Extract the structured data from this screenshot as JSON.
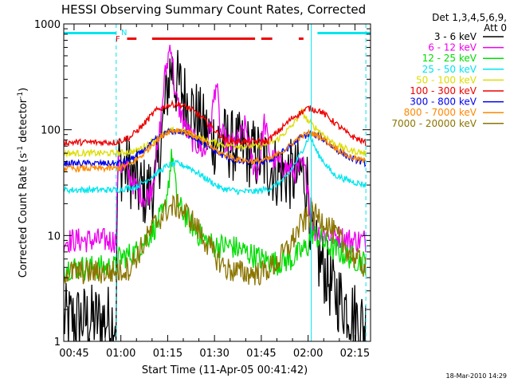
{
  "chart_data": {
    "type": "line",
    "title": "HESSI Observing Summary Count Rates, Corrected",
    "xlabel": "Start Time (11-Apr-05 00:41:42)",
    "ylabel_main": "Corrected Count Rate (s",
    "ylabel_sup1": "-1",
    "ylabel_mid": " detector",
    "ylabel_sup2": "-1",
    "ylabel_end": ")",
    "y_scale": "log",
    "ylim": [
      1,
      1000
    ],
    "xlim": [
      "00:41:42",
      "02:20:00"
    ],
    "x_ticks": [
      "00:45",
      "01:00",
      "01:15",
      "01:30",
      "01:45",
      "02:00",
      "02:15"
    ],
    "y_ticks": [
      "1",
      "10",
      "100",
      "1000"
    ],
    "legend_header": [
      "Det 1,3,4,5,6,9,",
      "Att 0"
    ],
    "legend_position": "right",
    "footer_date": "18-Mar-2010 14:29",
    "flags": {
      "night_label": "N",
      "flare_label": "F",
      "night_color": "#00e5ee",
      "flare_color": "#ee0000",
      "night_bars": [
        [
          "00:41:42",
          "00:58:30"
        ],
        [
          "02:03:00",
          "02:20:00"
        ]
      ],
      "flare_bars": [
        [
          "01:02:00",
          "01:05:00"
        ],
        [
          "01:10:00",
          "01:43:00"
        ],
        [
          "01:45:00",
          "01:48:30"
        ],
        [
          "01:57:00",
          "01:58:30"
        ]
      ],
      "vlines": [
        "00:58:30",
        "02:01:00",
        "02:18:30"
      ]
    },
    "series": [
      {
        "name": "3 - 6 keV",
        "color": "#000000",
        "pts": [
          [
            "00:41:42",
            1.6
          ],
          [
            "00:58:30",
            1.6
          ],
          [
            "00:59:00",
            48
          ],
          [
            "01:03:00",
            40
          ],
          [
            "01:05:00",
            30
          ],
          [
            "01:08:00",
            25
          ],
          [
            "01:11:00",
            30
          ],
          [
            "01:13:00",
            80
          ],
          [
            "01:14:30",
            200
          ],
          [
            "01:16:00",
            410
          ],
          [
            "01:17:30",
            280
          ],
          [
            "01:19:00",
            250
          ],
          [
            "01:21:00",
            190
          ],
          [
            "01:24:00",
            140
          ],
          [
            "01:27:00",
            95
          ],
          [
            "01:30:00",
            80
          ],
          [
            "01:33:00",
            78
          ],
          [
            "01:36:00",
            70
          ],
          [
            "01:39:00",
            65
          ],
          [
            "01:42:00",
            60
          ],
          [
            "01:44:00",
            55
          ],
          [
            "01:46:00",
            50
          ],
          [
            "01:48:00",
            45
          ],
          [
            "01:50:00",
            40
          ],
          [
            "01:53:00",
            38
          ],
          [
            "01:56:00",
            36
          ],
          [
            "01:58:00",
            40
          ],
          [
            "02:00:00",
            30
          ],
          [
            "02:01:00",
            10
          ],
          [
            "02:02:00",
            7
          ],
          [
            "02:05:00",
            5
          ],
          [
            "02:08:00",
            3
          ],
          [
            "02:12:00",
            2.2
          ],
          [
            "02:16:00",
            1.6
          ],
          [
            "02:18:30",
            1.4
          ]
        ]
      },
      {
        "name": "6 - 12 keV",
        "color": "#ee00ee",
        "pts": [
          [
            "00:41:42",
            9
          ],
          [
            "00:58:30",
            9
          ],
          [
            "00:59:00",
            50
          ],
          [
            "01:02:00",
            40
          ],
          [
            "01:05:00",
            28
          ],
          [
            "01:08:00",
            22
          ],
          [
            "01:10:00",
            30
          ],
          [
            "01:12:00",
            70
          ],
          [
            "01:14:00",
            300
          ],
          [
            "01:16:00",
            700
          ],
          [
            "01:17:30",
            200
          ],
          [
            "01:19:00",
            150
          ],
          [
            "01:21:00",
            100
          ],
          [
            "01:23:00",
            80
          ],
          [
            "01:25:00",
            70
          ],
          [
            "01:27:00",
            60
          ],
          [
            "01:29:00",
            120
          ],
          [
            "01:30:30",
            300
          ],
          [
            "01:32:00",
            90
          ],
          [
            "01:35:00",
            70
          ],
          [
            "01:38:00",
            80
          ],
          [
            "01:40:00",
            110
          ],
          [
            "01:42:00",
            50
          ],
          [
            "01:44:00",
            40
          ],
          [
            "01:46:00",
            120
          ],
          [
            "01:48:00",
            55
          ],
          [
            "01:52:00",
            45
          ],
          [
            "01:56:00",
            40
          ],
          [
            "01:58:30",
            45
          ],
          [
            "02:00:00",
            30
          ],
          [
            "02:01:00",
            12
          ],
          [
            "02:02:00",
            11
          ],
          [
            "02:08:00",
            10
          ],
          [
            "02:14:00",
            9
          ],
          [
            "02:18:30",
            9
          ]
        ]
      },
      {
        "name": "12 - 25 keV",
        "color": "#00dd00",
        "pts": [
          [
            "00:41:42",
            5
          ],
          [
            "00:58:30",
            5
          ],
          [
            "00:59:00",
            6
          ],
          [
            "01:05:00",
            7
          ],
          [
            "01:10:00",
            11
          ],
          [
            "01:14:00",
            17
          ],
          [
            "01:16:30",
            60
          ],
          [
            "01:18:00",
            20
          ],
          [
            "01:21:00",
            15
          ],
          [
            "01:24:00",
            11
          ],
          [
            "01:27:00",
            9
          ],
          [
            "01:30:00",
            8
          ],
          [
            "01:35:00",
            8
          ],
          [
            "01:40:00",
            7
          ],
          [
            "01:45:00",
            6
          ],
          [
            "01:50:00",
            5.5
          ],
          [
            "01:55:00",
            6
          ],
          [
            "02:00:00",
            8
          ],
          [
            "02:01:00",
            11
          ],
          [
            "02:06:00",
            8
          ],
          [
            "02:10:00",
            7
          ],
          [
            "02:15:00",
            6
          ],
          [
            "02:18:30",
            5.5
          ]
        ]
      },
      {
        "name": "25 - 50 keV",
        "color": "#00e5ee",
        "pts": [
          [
            "00:41:42",
            27
          ],
          [
            "00:58:30",
            27
          ],
          [
            "01:05:00",
            29
          ],
          [
            "01:10:00",
            36
          ],
          [
            "01:15:00",
            46
          ],
          [
            "01:18:00",
            48
          ],
          [
            "01:22:00",
            44
          ],
          [
            "01:27:00",
            35
          ],
          [
            "01:32:00",
            28
          ],
          [
            "01:38:00",
            26
          ],
          [
            "01:43:00",
            26
          ],
          [
            "01:48:00",
            28
          ],
          [
            "01:53:00",
            35
          ],
          [
            "01:57:00",
            55
          ],
          [
            "02:00:30",
            88
          ],
          [
            "02:03:00",
            60
          ],
          [
            "02:08:00",
            38
          ],
          [
            "02:13:00",
            33
          ],
          [
            "02:18:30",
            30
          ]
        ]
      },
      {
        "name": "50 - 100 keV",
        "color": "#dddd00",
        "pts": [
          [
            "00:41:42",
            60
          ],
          [
            "00:58:30",
            60
          ],
          [
            "01:05:00",
            63
          ],
          [
            "01:10:00",
            78
          ],
          [
            "01:15:00",
            96
          ],
          [
            "01:18:00",
            100
          ],
          [
            "01:22:00",
            92
          ],
          [
            "01:27:00",
            80
          ],
          [
            "01:33:00",
            72
          ],
          [
            "01:40:00",
            70
          ],
          [
            "01:45:00",
            70
          ],
          [
            "01:50:00",
            80
          ],
          [
            "01:55:00",
            110
          ],
          [
            "01:58:00",
            150
          ],
          [
            "02:00:00",
            120
          ],
          [
            "02:04:00",
            95
          ],
          [
            "02:08:00",
            75
          ],
          [
            "02:13:00",
            64
          ],
          [
            "02:18:30",
            60
          ]
        ]
      },
      {
        "name": "100 - 300 keV",
        "color": "#ee0000",
        "pts": [
          [
            "00:41:42",
            76
          ],
          [
            "00:58:30",
            76
          ],
          [
            "01:03:00",
            85
          ],
          [
            "01:07:00",
            110
          ],
          [
            "01:11:00",
            150
          ],
          [
            "01:15:00",
            170
          ],
          [
            "01:18:00",
            175
          ],
          [
            "01:22:00",
            160
          ],
          [
            "01:26:00",
            130
          ],
          [
            "01:30:00",
            100
          ],
          [
            "01:33:00",
            80
          ],
          [
            "01:38:00",
            77
          ],
          [
            "01:43:00",
            77
          ],
          [
            "01:47:00",
            78
          ],
          [
            "01:51:00",
            100
          ],
          [
            "01:55:00",
            130
          ],
          [
            "02:00:00",
            160
          ],
          [
            "02:04:00",
            150
          ],
          [
            "02:08:00",
            120
          ],
          [
            "02:13:00",
            90
          ],
          [
            "02:18:30",
            75
          ]
        ]
      },
      {
        "name": "300 - 800 keV",
        "color": "#0000ee",
        "pts": [
          [
            "00:41:42",
            48
          ],
          [
            "00:58:30",
            48
          ],
          [
            "01:03:00",
            52
          ],
          [
            "01:07:00",
            62
          ],
          [
            "01:11:00",
            80
          ],
          [
            "01:15:00",
            95
          ],
          [
            "01:18:00",
            97
          ],
          [
            "01:22:00",
            90
          ],
          [
            "01:27:00",
            72
          ],
          [
            "01:32:00",
            58
          ],
          [
            "01:38:00",
            50
          ],
          [
            "01:43:00",
            49
          ],
          [
            "01:48:00",
            52
          ],
          [
            "01:53:00",
            65
          ],
          [
            "01:57:00",
            82
          ],
          [
            "02:00:30",
            92
          ],
          [
            "02:04:00",
            85
          ],
          [
            "02:08:00",
            68
          ],
          [
            "02:13:00",
            55
          ],
          [
            "02:18:30",
            48
          ]
        ]
      },
      {
        "name": "800 - 7000 keV",
        "color": "#ff8800",
        "pts": [
          [
            "00:41:42",
            43
          ],
          [
            "00:58:30",
            43
          ],
          [
            "01:03:00",
            47
          ],
          [
            "01:07:00",
            58
          ],
          [
            "01:11:00",
            78
          ],
          [
            "01:15:00",
            96
          ],
          [
            "01:18:00",
            100
          ],
          [
            "01:22:00",
            93
          ],
          [
            "01:27:00",
            75
          ],
          [
            "01:32:00",
            60
          ],
          [
            "01:38:00",
            52
          ],
          [
            "01:43:00",
            50
          ],
          [
            "01:48:00",
            53
          ],
          [
            "01:53:00",
            66
          ],
          [
            "01:57:00",
            84
          ],
          [
            "02:00:30",
            94
          ],
          [
            "02:04:00",
            86
          ],
          [
            "02:08:00",
            70
          ],
          [
            "02:13:00",
            56
          ],
          [
            "02:18:30",
            50
          ]
        ]
      },
      {
        "name": "7000 - 20000 keV",
        "color": "#8b7500",
        "pts": [
          [
            "00:41:42",
            4.5
          ],
          [
            "00:58:30",
            4.5
          ],
          [
            "01:03:00",
            5
          ],
          [
            "01:07:00",
            8
          ],
          [
            "01:11:00",
            13
          ],
          [
            "01:15:00",
            18
          ],
          [
            "01:18:00",
            19
          ],
          [
            "01:22:00",
            15
          ],
          [
            "01:26:00",
            10
          ],
          [
            "01:30:00",
            6.5
          ],
          [
            "01:34:00",
            4.8
          ],
          [
            "01:40:00",
            4.4
          ],
          [
            "01:45:00",
            4.4
          ],
          [
            "01:50:00",
            5.5
          ],
          [
            "01:54:00",
            8
          ],
          [
            "01:58:00",
            13
          ],
          [
            "02:01:00",
            16
          ],
          [
            "02:05:00",
            14
          ],
          [
            "02:09:00",
            10
          ],
          [
            "02:14:00",
            6.5
          ],
          [
            "02:18:30",
            5
          ]
        ]
      }
    ]
  }
}
